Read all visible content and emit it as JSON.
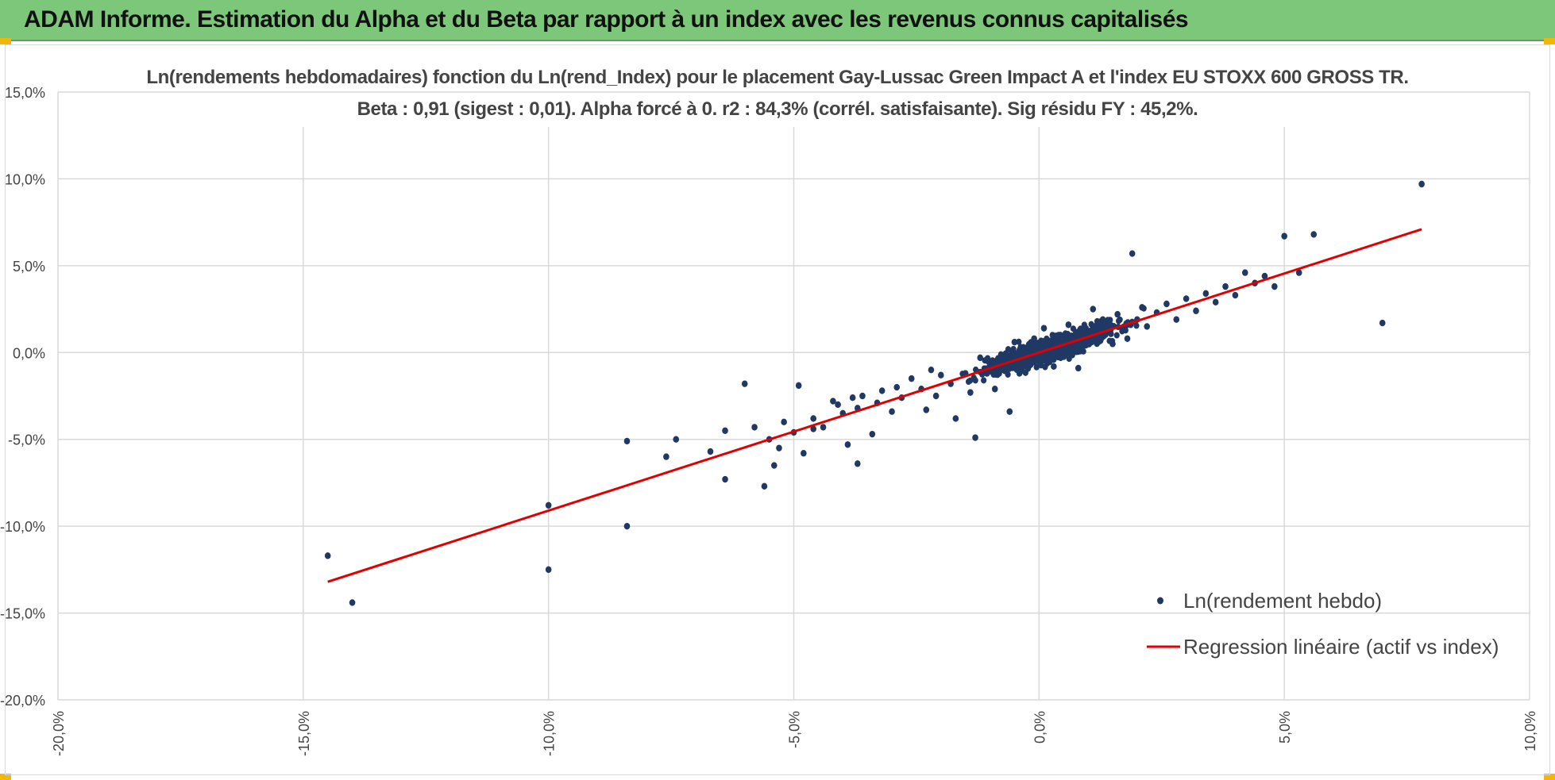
{
  "banner": {
    "title": "ADAM Informe. Estimation du Alpha et du Beta par rapport à un index avec les revenus connus capitalisés"
  },
  "colors": {
    "banner_bg": "#7dc77a",
    "corner_accent": "#f2b705",
    "points": "#203864",
    "regression": "#e00000",
    "grid": "#d9d9d9",
    "axis_text": "#444444"
  },
  "chart_data": {
    "type": "scatter",
    "title": "Ln(rendements hebdomadaires) fonction du Ln(rend_Index) pour le placement Gay-Lussac Green Impact A et l'index EU STOXX 600 GROSS TR.",
    "subtitle": "Beta : 0,91 (sigest : 0,01). Alpha forcé à 0. r2 : 84,3% (corrél. satisfaisante). Sig résidu FY : 45,2%.",
    "xlabel": "",
    "ylabel": "",
    "xlim": [
      -20,
      10
    ],
    "ylim": [
      -20,
      15
    ],
    "x_ticks": [
      -20,
      -15,
      -10,
      -5,
      0,
      5,
      10
    ],
    "y_ticks": [
      -20,
      -15,
      -10,
      -5,
      0,
      5,
      10,
      15
    ],
    "x_tick_labels": [
      "-20,0%",
      "-15,0%",
      "-10,0%",
      "-5,0%",
      "0,0%",
      "5,0%",
      "10,0%"
    ],
    "y_tick_labels": [
      "-20,0%",
      "-15,0%",
      "-10,0%",
      "-5,0%",
      "0,0%",
      "5,0%",
      "10,0%",
      "15,0%"
    ],
    "grid": true,
    "legend_position": "bottom-right",
    "series": [
      {
        "name": "Ln(rendement hebdo)",
        "kind": "points",
        "x": [
          -14.5,
          -14.0,
          -10.0,
          -10.0,
          -8.4,
          -8.4,
          -7.6,
          -7.4,
          -6.7,
          -6.4,
          -6.4,
          -6.0,
          -5.8,
          -5.6,
          -5.5,
          -5.4,
          -5.3,
          -5.2,
          -5.0,
          -4.9,
          -4.8,
          -4.6,
          -4.6,
          -4.4,
          -4.2,
          -4.1,
          -4.0,
          -3.9,
          -3.8,
          -3.7,
          -3.7,
          -3.6,
          -3.4,
          -3.3,
          -3.2,
          -3.0,
          -2.9,
          -2.8,
          -2.6,
          -2.4,
          -2.3,
          -2.2,
          -2.1,
          -2.0,
          -1.8,
          -1.7,
          -1.5,
          -1.4,
          -1.3,
          -1.2,
          -1.1,
          -1.0,
          -0.9,
          -0.8,
          -0.7,
          -0.6,
          -0.5,
          -0.4,
          -0.3,
          -0.2,
          -0.1,
          0.0,
          0.1,
          0.2,
          0.3,
          0.4,
          0.5,
          0.6,
          0.7,
          0.8,
          0.9,
          1.0,
          1.1,
          1.2,
          1.3,
          1.4,
          1.5,
          1.6,
          1.7,
          1.8,
          1.9,
          2.0,
          2.1,
          2.2,
          2.4,
          2.6,
          2.8,
          3.0,
          3.2,
          3.4,
          3.6,
          3.8,
          4.0,
          4.2,
          4.4,
          4.6,
          4.8,
          5.0,
          5.3,
          5.6,
          7.0,
          7.8
        ],
        "y": [
          -11.7,
          -14.4,
          -8.8,
          -12.5,
          -5.1,
          -10.0,
          -6.0,
          -5.0,
          -5.7,
          -4.5,
          -7.3,
          -1.8,
          -4.3,
          -7.7,
          -5.0,
          -6.5,
          -5.5,
          -4.0,
          -4.6,
          -1.9,
          -5.8,
          -4.4,
          -3.8,
          -4.3,
          -2.8,
          -3.0,
          -3.5,
          -5.3,
          -2.6,
          -6.4,
          -3.2,
          -2.5,
          -4.7,
          -2.9,
          -2.2,
          -3.4,
          -2.0,
          -2.6,
          -1.5,
          -2.1,
          -3.3,
          -1.0,
          -2.5,
          -1.3,
          -1.8,
          -3.8,
          -1.2,
          -2.3,
          -4.9,
          -0.3,
          -1.0,
          -0.7,
          -2.1,
          -0.6,
          -0.2,
          -3.4,
          0.6,
          -1.2,
          0.2,
          -0.5,
          0.8,
          -0.3,
          1.4,
          0.2,
          -0.8,
          1.0,
          0.4,
          1.6,
          0.6,
          -0.9,
          1.1,
          0.9,
          2.5,
          0.7,
          1.9,
          1.2,
          0.5,
          2.2,
          1.4,
          0.8,
          5.7,
          1.9,
          2.6,
          1.5,
          2.3,
          2.8,
          1.9,
          3.1,
          2.4,
          3.4,
          2.9,
          3.8,
          3.3,
          4.6,
          4.0,
          4.4,
          3.8,
          6.7,
          4.6,
          6.8,
          1.7,
          9.7
        ]
      },
      {
        "name": "Regression linéaire (actif vs index)",
        "kind": "line",
        "x": [
          -14.5,
          7.8
        ],
        "y": [
          -13.2,
          7.1
        ]
      }
    ]
  }
}
